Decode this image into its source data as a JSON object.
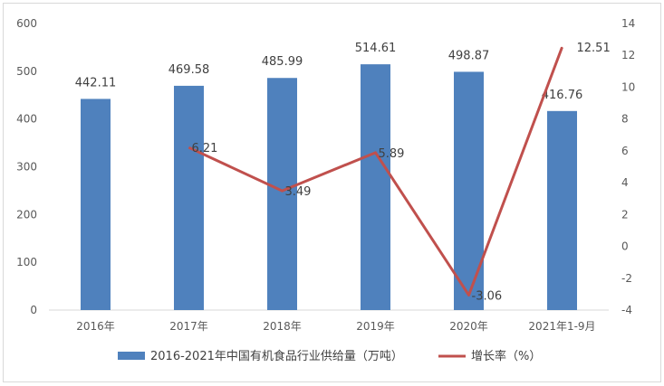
{
  "chart_data": {
    "type": "bar+line",
    "categories": [
      "2016年",
      "2017年",
      "2018年",
      "2019年",
      "2020年",
      "2021年1-9月"
    ],
    "series": [
      {
        "name": "2016-2021年中国有机食品行业供给量（万吨）",
        "type": "bar",
        "axis": "left",
        "color": "#4f81bd",
        "values": [
          442.11,
          469.58,
          485.99,
          514.61,
          498.87,
          416.76
        ],
        "labels": [
          "442.11",
          "469.58",
          "485.99",
          "514.61",
          "498.87",
          "416.76"
        ]
      },
      {
        "name": "增长率（%）",
        "type": "line",
        "axis": "right",
        "color": "#c0504d",
        "values": [
          null,
          6.21,
          3.49,
          5.89,
          -3.06,
          12.51
        ],
        "labels": [
          "",
          "6.21",
          "3.49",
          "5.89",
          "-3.06",
          "12.51"
        ]
      }
    ],
    "y_left": {
      "min": 0,
      "max": 600,
      "ticks": [
        "0",
        "100",
        "200",
        "300",
        "400",
        "500",
        "600"
      ]
    },
    "y_right": {
      "min": -4,
      "max": 14,
      "ticks": [
        "-4",
        "-2",
        "0",
        "2",
        "4",
        "6",
        "8",
        "10",
        "12",
        "14"
      ]
    },
    "legend_position": "bottom",
    "grid": false
  }
}
